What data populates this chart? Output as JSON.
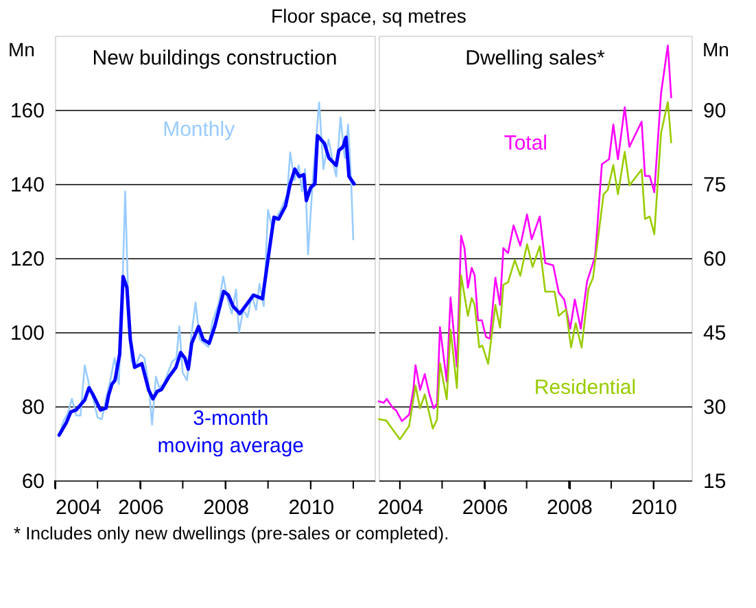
{
  "chart_data": [
    {
      "type": "line",
      "title": "New buildings construction",
      "ylabel": "Mn",
      "annotations": [
        "Floor space, sq metres"
      ],
      "xlim": [
        2004,
        2011.5
      ],
      "xticks": [
        2004,
        {
          "value": 2005,
          "label": null
        },
        2006,
        {
          "value": 2007,
          "label": null
        },
        2008,
        {
          "value": 2009,
          "label": null
        },
        2010,
        {
          "value": 2011,
          "label": null
        }
      ],
      "ylim": [
        60,
        180
      ],
      "yticks": [
        60,
        80,
        100,
        120,
        140,
        160
      ],
      "grid": "y",
      "line_style": "solid",
      "series": [
        {
          "name": "Monthly",
          "color": "#99ccff",
          "x": [
            2004.1,
            2004.2,
            2004.3,
            2004.4,
            2004.5,
            2004.6,
            2004.7,
            2004.8,
            2004.9,
            2005.0,
            2005.1,
            2005.2,
            2005.3,
            2005.4,
            2005.5,
            2005.58,
            2005.65,
            2005.73,
            2005.8,
            2005.9,
            2006.0,
            2006.1,
            2006.2,
            2006.28,
            2006.37,
            2006.45,
            2006.55,
            2006.65,
            2006.75,
            2006.85,
            2006.92,
            2007.0,
            2007.1,
            2007.2,
            2007.3,
            2007.4,
            2007.5,
            2007.6,
            2007.7,
            2007.85,
            2007.95,
            2008.05,
            2008.15,
            2008.25,
            2008.32,
            2008.42,
            2008.52,
            2008.62,
            2008.72,
            2008.8,
            2008.9,
            2009.0,
            2009.1,
            2009.2,
            2009.3,
            2009.45,
            2009.52,
            2009.62,
            2009.72,
            2009.8,
            2009.87,
            2009.94,
            2010.05,
            2010.12,
            2010.2,
            2010.3,
            2010.42,
            2010.52,
            2010.6,
            2010.7,
            2010.8,
            2010.88,
            2010.95,
            2011.0
          ],
          "values": [
            72,
            76,
            78,
            82,
            77.5,
            77.5,
            91,
            86,
            82,
            77,
            76.5,
            82,
            87,
            93,
            86,
            110,
            138,
            105,
            92,
            91,
            94,
            93,
            86,
            75,
            88,
            85,
            86,
            89,
            92,
            93,
            101.5,
            89,
            87,
            99,
            108,
            98,
            97,
            96,
            103,
            108,
            115,
            109,
            105,
            111.5,
            100,
            106,
            104,
            110,
            106,
            113,
            107,
            133,
            128,
            131,
            133,
            137,
            148.5,
            141,
            145,
            138,
            144,
            121,
            141,
            151,
            162,
            144,
            152,
            146,
            142,
            158,
            147,
            156,
            141,
            125
          ]
        },
        {
          "name": "3-month moving average",
          "color": "#0000ff",
          "x": [
            2004.1,
            2004.27,
            2004.375,
            2004.5,
            2004.7,
            2004.8,
            2004.9,
            2005.07,
            2005.2,
            2005.26,
            2005.34,
            2005.41,
            2005.52,
            2005.6,
            2005.69,
            2005.77,
            2005.87,
            2006.04,
            2006.2,
            2006.3,
            2006.4,
            2006.5,
            2006.68,
            2006.84,
            2006.95,
            2007.05,
            2007.13,
            2007.21,
            2007.37,
            2007.48,
            2007.62,
            2007.75,
            2007.96,
            2008.07,
            2008.18,
            2008.34,
            2008.5,
            2008.66,
            2008.87,
            2009.04,
            2009.14,
            2009.25,
            2009.41,
            2009.52,
            2009.63,
            2009.73,
            2009.84,
            2009.9,
            2010.0,
            2010.1,
            2010.16,
            2010.32,
            2010.43,
            2010.6,
            2010.66,
            2010.76,
            2010.83,
            2010.9,
            2011.02
          ],
          "values": [
            72.2,
            75.6,
            78.5,
            79,
            81.7,
            85,
            83,
            79,
            79.5,
            83,
            86,
            87,
            94,
            115,
            112,
            98,
            90.5,
            91.5,
            84.4,
            82,
            84,
            84.5,
            88,
            90.5,
            94.5,
            93,
            90,
            97,
            101.5,
            98,
            97,
            101.5,
            111,
            110,
            107,
            105,
            107.5,
            110,
            109,
            123,
            131,
            130.5,
            134,
            140,
            144,
            142,
            142.5,
            135.5,
            139,
            140,
            153,
            151,
            147,
            145,
            149,
            150,
            152.6,
            142,
            140
          ]
        }
      ]
    },
    {
      "type": "line",
      "title": "Dwelling sales*",
      "y2label": "Mn",
      "annotations": [
        "* Includes only new dwellings (pre-sales or completed)."
      ],
      "xlim": [
        2003.5,
        2010.9
      ],
      "xticks": [
        2004,
        {
          "value": 2005,
          "label": null
        },
        2006,
        {
          "value": 2007,
          "label": null
        },
        2008,
        {
          "value": 2009,
          "label": null
        },
        2010
      ],
      "y2lim": [
        15,
        105
      ],
      "y2ticks": [
        15,
        30,
        45,
        60,
        75,
        90
      ],
      "grid": "y",
      "line_style": "solid",
      "series": [
        {
          "name": "Total",
          "color": "#ff00ff",
          "axis": "y2",
          "x": [
            2003.5,
            2003.62,
            2003.69,
            2003.84,
            2003.91,
            2004.05,
            2004.22,
            2004.32,
            2004.37,
            2004.48,
            2004.59,
            2004.7,
            2004.8,
            2004.88,
            2004.95,
            2005.11,
            2005.2,
            2005.35,
            2005.45,
            2005.53,
            2005.61,
            2005.7,
            2005.77,
            2005.85,
            2005.94,
            2006.04,
            2006.13,
            2006.26,
            2006.37,
            2006.45,
            2006.56,
            2006.69,
            2006.85,
            2007.01,
            2007.12,
            2007.31,
            2007.44,
            2007.63,
            2007.76,
            2007.89,
            2008.03,
            2008.14,
            2008.28,
            2008.43,
            2008.62,
            2008.78,
            2008.95,
            2009.05,
            2009.16,
            2009.32,
            2009.43,
            2009.72,
            2009.8,
            2009.91,
            2010.02,
            2010.18,
            2010.34,
            2010.42
          ],
          "values": [
            31,
            30.7,
            31.5,
            29.6,
            29.2,
            27,
            28.3,
            33.3,
            38.3,
            33.3,
            36.5,
            32.4,
            29.6,
            30.5,
            46,
            35,
            52,
            38,
            64.5,
            62,
            54,
            58,
            56.5,
            47.4,
            47.4,
            44,
            43.7,
            56,
            50.5,
            62,
            61,
            66.6,
            62.5,
            68.8,
            63.8,
            68.4,
            59,
            58.5,
            53,
            51.6,
            45.7,
            51.6,
            45.7,
            55.3,
            60.3,
            79,
            80,
            87,
            80,
            90.5,
            82.5,
            87.6,
            76.6,
            76.6,
            73.3,
            93.4,
            103,
            92.5
          ]
        },
        {
          "name": "Residential",
          "color": "#99cc00",
          "axis": "y2",
          "x": [
            2003.5,
            2003.68,
            2004.0,
            2004.22,
            2004.37,
            2004.48,
            2004.59,
            2004.78,
            2004.88,
            2004.95,
            2005.11,
            2005.2,
            2005.35,
            2005.45,
            2005.61,
            2005.7,
            2005.77,
            2005.88,
            2005.95,
            2006.09,
            2006.26,
            2006.37,
            2006.45,
            2006.56,
            2006.72,
            2006.85,
            2007.01,
            2007.14,
            2007.31,
            2007.44,
            2007.66,
            2007.76,
            2007.93,
            2008.05,
            2008.16,
            2008.3,
            2008.46,
            2008.57,
            2008.82,
            2008.92,
            2009.05,
            2009.16,
            2009.32,
            2009.43,
            2009.72,
            2009.8,
            2009.91,
            2010.02,
            2010.18,
            2010.34,
            2010.42
          ],
          "values": [
            27.4,
            27.1,
            23.3,
            26,
            34.2,
            29.6,
            32.4,
            25.5,
            27.3,
            38.7,
            31.4,
            45.5,
            33.7,
            56.5,
            48.3,
            51.9,
            50.5,
            41.9,
            42.3,
            38.6,
            50.5,
            45.9,
            54.6,
            55.1,
            59.6,
            56.4,
            62.8,
            58.2,
            62.4,
            53.2,
            53.2,
            48.3,
            49.6,
            41.9,
            46.8,
            41.9,
            53.7,
            56,
            72.9,
            73.8,
            78.8,
            72.9,
            81.5,
            74.7,
            77.9,
            67.9,
            68.4,
            64.8,
            85.3,
            91.6,
            83.4
          ]
        }
      ]
    }
  ]
}
